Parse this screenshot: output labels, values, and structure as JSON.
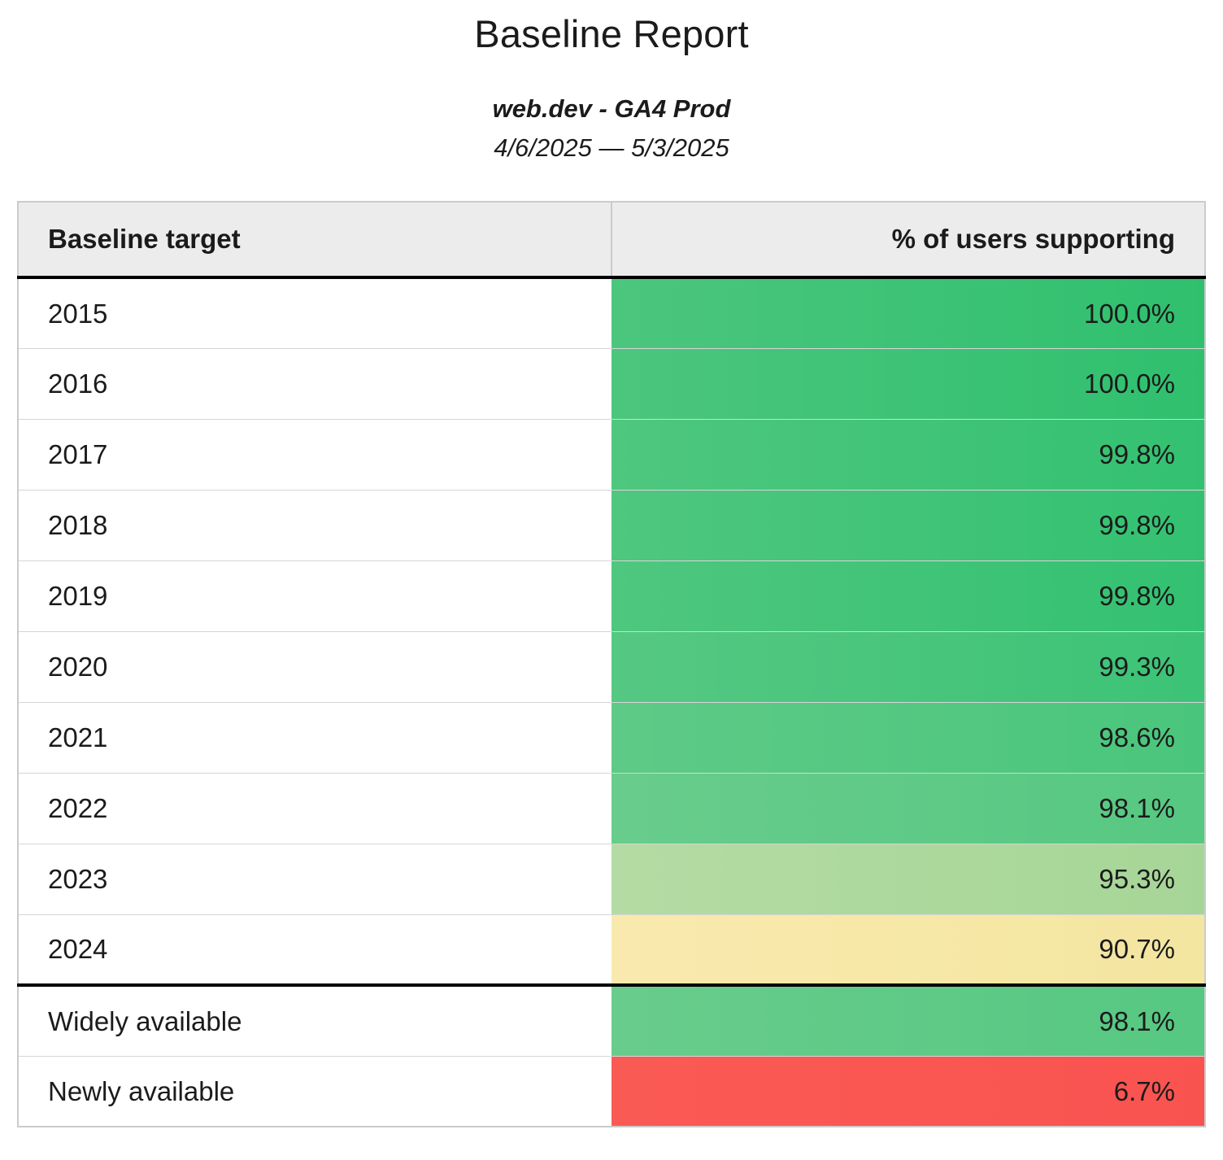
{
  "report": {
    "title": "Baseline Report",
    "subtitle": "web.dev - GA4 Prod",
    "date_range": "4/6/2025 — 5/3/2025"
  },
  "table": {
    "columns": [
      {
        "label": "Baseline target"
      },
      {
        "label": "% of users supporting"
      }
    ],
    "rows": [
      {
        "label": "2015",
        "value": "100.0%",
        "cell_gradient": [
          "#4cc67d",
          "#2fc06e"
        ],
        "thick_border_above": false
      },
      {
        "label": "2016",
        "value": "100.0%",
        "cell_gradient": [
          "#4cc67d",
          "#2fc06e"
        ],
        "thick_border_above": false
      },
      {
        "label": "2017",
        "value": "99.8%",
        "cell_gradient": [
          "#4fc77f",
          "#33c171"
        ],
        "thick_border_above": false
      },
      {
        "label": "2018",
        "value": "99.8%",
        "cell_gradient": [
          "#4fc77f",
          "#33c171"
        ],
        "thick_border_above": false
      },
      {
        "label": "2019",
        "value": "99.8%",
        "cell_gradient": [
          "#4fc77f",
          "#33c171"
        ],
        "thick_border_above": false
      },
      {
        "label": "2020",
        "value": "99.3%",
        "cell_gradient": [
          "#55c882",
          "#3cc376"
        ],
        "thick_border_above": false
      },
      {
        "label": "2021",
        "value": "98.6%",
        "cell_gradient": [
          "#5eca87",
          "#4ac67c"
        ],
        "thick_border_above": false
      },
      {
        "label": "2022",
        "value": "98.1%",
        "cell_gradient": [
          "#68cc8c",
          "#56c882"
        ],
        "thick_border_above": false
      },
      {
        "label": "2023",
        "value": "95.3%",
        "cell_gradient": [
          "#b4dba3",
          "#a6d697"
        ],
        "thick_border_above": false
      },
      {
        "label": "2024",
        "value": "90.7%",
        "cell_gradient": [
          "#fae9ae",
          "#f3e6a0"
        ],
        "thick_border_above": false
      },
      {
        "label": "Widely available",
        "value": "98.1%",
        "cell_gradient": [
          "#68cc8c",
          "#56c882"
        ],
        "thick_border_above": true
      },
      {
        "label": "Newly available",
        "value": "6.7%",
        "cell_gradient": [
          "#fa5a54",
          "#f95350"
        ],
        "thick_border_above": false
      }
    ]
  },
  "colors": {
    "header_bg": "#ececec",
    "light_border": "#cbcbcb",
    "row_separator": "#d6d6d6",
    "thick_border": "#000000",
    "green_high": "#2fc06e",
    "green_mid": "#56c882",
    "green_light": "#a6d697",
    "yellow": "#f3e6a0",
    "red": "#f95350",
    "text": "#1b1b1b"
  },
  "chart_data": {
    "type": "table",
    "title": "Baseline Report",
    "subtitle": "web.dev - GA4 Prod",
    "date_range": "4/6/2025 — 5/3/2025",
    "columns": [
      "Baseline target",
      "% of users supporting"
    ],
    "rows": [
      [
        "2015",
        100.0
      ],
      [
        "2016",
        100.0
      ],
      [
        "2017",
        99.8
      ],
      [
        "2018",
        99.8
      ],
      [
        "2019",
        99.8
      ],
      [
        "2020",
        99.3
      ],
      [
        "2021",
        98.6
      ],
      [
        "2022",
        98.1
      ],
      [
        "2023",
        95.3
      ],
      [
        "2024",
        90.7
      ],
      [
        "Widely available",
        98.1
      ],
      [
        "Newly available",
        6.7
      ]
    ],
    "value_unit": "%",
    "color_scale": "conditional formatting red→yellow→green applied to the % of users supporting column",
    "notes": "Thick black rule separates the 2015–2024 yearly targets from the Widely/Newly available summary rows"
  }
}
